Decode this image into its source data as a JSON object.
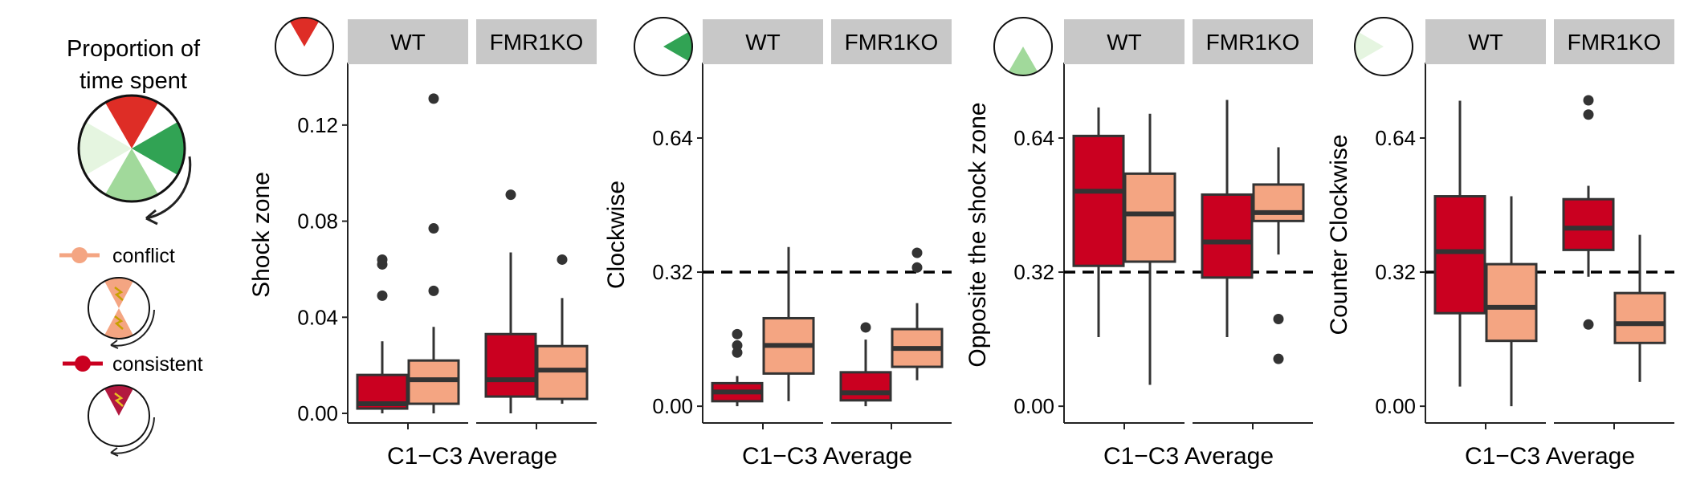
{
  "legend": {
    "title_line1": "Proportion of",
    "title_line2": "time spent",
    "conflict_label": "conflict",
    "consistent_label": "consistent"
  },
  "colors": {
    "conflict": "#f4a582",
    "consistent": "#ca0020",
    "shock_zone": "#de2d26",
    "clockwise": "#31a354",
    "opposite": "#a1d99b",
    "counter_clockwise": "#e5f5e0",
    "strip_bg": "#c8c8c8"
  },
  "chart_data": [
    {
      "type": "box",
      "zone_icon": "shock_zone",
      "ylabel": "Shock zone",
      "xlabel": "C1−C3 Average",
      "facets": [
        "WT",
        "FMR1KO"
      ],
      "ylim": [
        -0.004,
        0.146
      ],
      "yticks": [
        0.0,
        0.04,
        0.08,
        0.12
      ],
      "ytick_labels": [
        "0.00",
        "0.04",
        "0.08",
        "0.12"
      ],
      "reference_line": null,
      "boxes": [
        {
          "facet": "WT",
          "group": "consistent",
          "min": 0.0,
          "q1": 0.002,
          "median": 0.004,
          "q3": 0.016,
          "max": 0.03,
          "outliers": [
            0.049,
            0.062,
            0.064
          ]
        },
        {
          "facet": "WT",
          "group": "conflict",
          "min": 0.0,
          "q1": 0.004,
          "median": 0.014,
          "q3": 0.022,
          "max": 0.036,
          "outliers": [
            0.051,
            0.077,
            0.131
          ]
        },
        {
          "facet": "FMR1KO",
          "group": "consistent",
          "min": 0.0,
          "q1": 0.007,
          "median": 0.014,
          "q3": 0.033,
          "max": 0.067,
          "outliers": [
            0.091
          ]
        },
        {
          "facet": "FMR1KO",
          "group": "conflict",
          "min": 0.004,
          "q1": 0.006,
          "median": 0.018,
          "q3": 0.028,
          "max": 0.048,
          "outliers": [
            0.064
          ]
        }
      ]
    },
    {
      "type": "box",
      "zone_icon": "clockwise",
      "ylabel": "Clockwise",
      "xlabel": "C1−C3 Average",
      "facets": [
        "WT",
        "FMR1KO"
      ],
      "ylim": [
        -0.04,
        0.82
      ],
      "yticks": [
        0.0,
        0.32,
        0.64
      ],
      "ytick_labels": [
        "0.00",
        "0.32",
        "0.64"
      ],
      "reference_line": 0.32,
      "boxes": [
        {
          "facet": "WT",
          "group": "consistent",
          "min": 0.0,
          "q1": 0.012,
          "median": 0.034,
          "q3": 0.055,
          "max": 0.072,
          "outliers": [
            0.128,
            0.145,
            0.172
          ]
        },
        {
          "facet": "WT",
          "group": "conflict",
          "min": 0.012,
          "q1": 0.078,
          "median": 0.145,
          "q3": 0.21,
          "max": 0.38,
          "outliers": []
        },
        {
          "facet": "FMR1KO",
          "group": "consistent",
          "min": 0.0,
          "q1": 0.014,
          "median": 0.032,
          "q3": 0.081,
          "max": 0.159,
          "outliers": [
            0.188
          ]
        },
        {
          "facet": "FMR1KO",
          "group": "conflict",
          "min": 0.062,
          "q1": 0.094,
          "median": 0.138,
          "q3": 0.184,
          "max": 0.246,
          "outliers": [
            0.331,
            0.366
          ]
        }
      ]
    },
    {
      "type": "box",
      "zone_icon": "opposite",
      "ylabel": "Opposite the shock zone",
      "xlabel": "C1−C3 Average",
      "facets": [
        "WT",
        "FMR1KO"
      ],
      "ylim": [
        -0.04,
        0.82
      ],
      "yticks": [
        0.0,
        0.32,
        0.64
      ],
      "ytick_labels": [
        "0.00",
        "0.32",
        "0.64"
      ],
      "reference_line": 0.32,
      "boxes": [
        {
          "facet": "WT",
          "group": "consistent",
          "min": 0.165,
          "q1": 0.335,
          "median": 0.513,
          "q3": 0.645,
          "max": 0.713,
          "outliers": []
        },
        {
          "facet": "WT",
          "group": "conflict",
          "min": 0.051,
          "q1": 0.345,
          "median": 0.459,
          "q3": 0.555,
          "max": 0.698,
          "outliers": []
        },
        {
          "facet": "FMR1KO",
          "group": "consistent",
          "min": 0.165,
          "q1": 0.307,
          "median": 0.392,
          "q3": 0.505,
          "max": 0.731,
          "outliers": []
        },
        {
          "facet": "FMR1KO",
          "group": "conflict",
          "min": 0.362,
          "q1": 0.442,
          "median": 0.462,
          "q3": 0.529,
          "max": 0.618,
          "outliers": [
            0.208,
            0.113
          ]
        }
      ]
    },
    {
      "type": "box",
      "zone_icon": "counter_clockwise",
      "ylabel": "Counter Clockwise",
      "xlabel": "C1−C3 Average",
      "facets": [
        "WT",
        "FMR1KO"
      ],
      "ylim": [
        -0.04,
        0.82
      ],
      "yticks": [
        0.0,
        0.32,
        0.64
      ],
      "ytick_labels": [
        "0.00",
        "0.32",
        "0.64"
      ],
      "reference_line": 0.32,
      "boxes": [
        {
          "facet": "WT",
          "group": "consistent",
          "min": 0.047,
          "q1": 0.222,
          "median": 0.369,
          "q3": 0.501,
          "max": 0.729,
          "outliers": []
        },
        {
          "facet": "WT",
          "group": "conflict",
          "min": 0.0,
          "q1": 0.156,
          "median": 0.236,
          "q3": 0.339,
          "max": 0.501,
          "outliers": []
        },
        {
          "facet": "FMR1KO",
          "group": "consistent",
          "min": 0.309,
          "q1": 0.373,
          "median": 0.425,
          "q3": 0.494,
          "max": 0.526,
          "outliers": [
            0.195,
            0.696,
            0.73
          ]
        },
        {
          "facet": "FMR1KO",
          "group": "conflict",
          "min": 0.058,
          "q1": 0.151,
          "median": 0.197,
          "q3": 0.27,
          "max": 0.409,
          "outliers": []
        }
      ]
    }
  ]
}
